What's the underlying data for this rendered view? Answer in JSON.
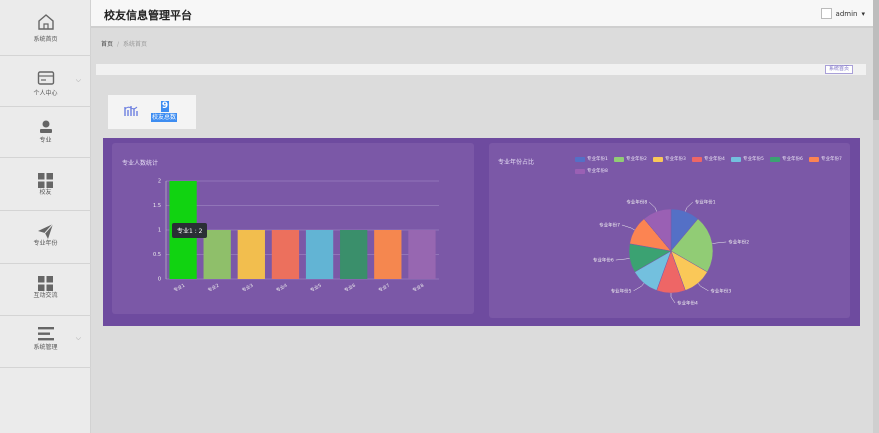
{
  "app": {
    "title": "校友信息管理平台"
  },
  "header": {
    "user": "admin",
    "caret": "▾"
  },
  "sidebar": {
    "items": [
      {
        "label": "系统首页",
        "icon": "home-icon",
        "chevron": ""
      },
      {
        "label": "个人中心",
        "icon": "wallet-icon",
        "chevron": "⌵"
      },
      {
        "label": "专业",
        "icon": "user-stamp-icon",
        "chevron": ""
      },
      {
        "label": "校友",
        "icon": "grid-icon",
        "chevron": ""
      },
      {
        "label": "专业年份",
        "icon": "send-icon",
        "chevron": ""
      },
      {
        "label": "互动交流",
        "icon": "grid-icon",
        "chevron": ""
      },
      {
        "label": "系统管理",
        "icon": "menu-icon",
        "chevron": "⌵"
      }
    ]
  },
  "breadcrumb": {
    "home": "首页",
    "sep": "/",
    "current": "系统首页"
  },
  "toolbar": {
    "button": "系统首页"
  },
  "stat": {
    "value": "9",
    "label": "校友总数"
  },
  "bar_card": {
    "title": "专业人数统计"
  },
  "pie_card": {
    "title": "专业年份占比"
  },
  "tooltip": {
    "text": "专业1 : 2"
  },
  "colors": {
    "purple_panel": "#6e4b9f",
    "purple_card": "#7b58a7",
    "accent": "#3e8df1"
  },
  "chart_data": [
    {
      "type": "bar",
      "title": "专业人数统计",
      "categories": [
        "专业1",
        "专业2",
        "专业3",
        "专业4",
        "专业5",
        "专业6",
        "专业7",
        "专业8"
      ],
      "values": [
        2,
        1,
        1,
        1,
        1,
        1,
        1,
        1
      ],
      "ylim": [
        0,
        2
      ],
      "yticks": [
        "0",
        "0.5",
        "1",
        "1.5",
        "2"
      ],
      "bar_colors": [
        "#11d311",
        "#8fbf6a",
        "#f2be4e",
        "#ec705d",
        "#62b4d4",
        "#3a8f6b",
        "#f5874f",
        "#9767b1"
      ],
      "grid": true
    },
    {
      "type": "pie",
      "title": "专业年份占比",
      "categories": [
        "专业年份1",
        "专业年份2",
        "专业年份3",
        "专业年份4",
        "专业年份5",
        "专业年份6",
        "专业年份7",
        "专业年份8"
      ],
      "values": [
        1,
        2,
        1,
        1,
        1,
        1,
        1,
        1
      ],
      "colors": [
        "#5470c6",
        "#91cc75",
        "#fac858",
        "#ee6666",
        "#73c0de",
        "#3ba272",
        "#fc8452",
        "#9a60b4"
      ],
      "legend": "top"
    }
  ]
}
